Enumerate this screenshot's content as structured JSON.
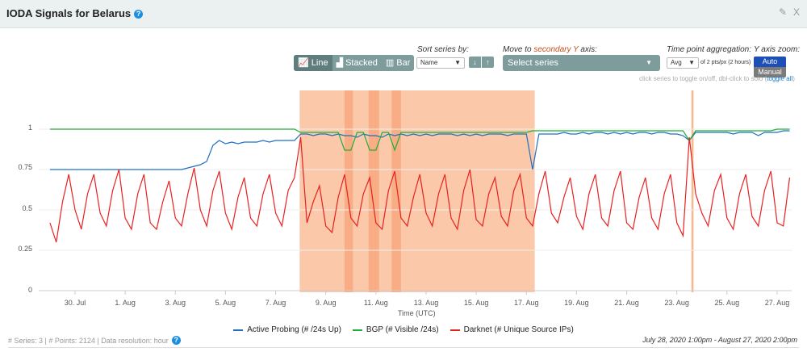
{
  "header": {
    "title": "IODA Signals for Belarus",
    "help_icon": "question-circle-icon",
    "edit_icon": "edit-icon",
    "close_label": "X"
  },
  "controls": {
    "chart_types": [
      {
        "label": "Line",
        "icon": "line-chart-icon",
        "active": true
      },
      {
        "label": "Stacked",
        "icon": "area-chart-icon",
        "active": false
      },
      {
        "label": "Bar",
        "icon": "bar-chart-icon",
        "active": false
      }
    ],
    "sort_label": "Sort series by:",
    "sort_value": "Name",
    "sort_down": "↓",
    "sort_up": "↑",
    "secondary_label_pre": "Move to ",
    "secondary_label_accent": "secondary Y",
    "secondary_label_post": " axis:",
    "secondary_placeholder": "Select series",
    "accent_color": "#c0501a",
    "agg_label": "Time point aggregation:",
    "agg_value": "Avg",
    "agg_note": "of 2 pts/px (2 hours)",
    "yzoom_label": "Y axis zoom:",
    "yzoom_auto": "Auto",
    "yzoom_manual": "Manual",
    "hint": "click series to toggle on/off, dbl-click to solo (",
    "hint_link": "toggle all",
    "hint_end": ")"
  },
  "footer": {
    "left": "# Series: 3 | # Points: 2124 | Data resolution: hour",
    "right": "July 28, 2020 1:00pm - August 27, 2020 2:00pm"
  },
  "chart_data": {
    "type": "line",
    "xlabel": "Time (UTC)",
    "x_ticks": [
      "30. Jul",
      "1. Aug",
      "3. Aug",
      "5. Aug",
      "7. Aug",
      "9. Aug",
      "11. Aug",
      "13. Aug",
      "15. Aug",
      "17. Aug",
      "19. Aug",
      "21. Aug",
      "23. Aug",
      "25. Aug",
      "27. Aug"
    ],
    "y_ticks": [
      "0",
      "0.25",
      "0.5",
      "0.75",
      "1"
    ],
    "ylim": [
      0,
      1.25
    ],
    "xlim": [
      "2020-07-28T13:00",
      "2020-08-27T14:00"
    ],
    "grid": "horizontal",
    "legend": "bottom",
    "highlight_regions": [
      {
        "from": "2020-08-07T23:00",
        "to": "2020-08-17T08:00",
        "color": "#fbc9a9"
      },
      {
        "from": "2020-08-09T18:00",
        "to": "2020-08-10T02:00",
        "color": "#f8ad85"
      },
      {
        "from": "2020-08-10T17:00",
        "to": "2020-08-11T03:00",
        "color": "#f8ad85"
      },
      {
        "from": "2020-08-11T15:00",
        "to": "2020-08-12T00:00",
        "color": "#f8ad85"
      },
      {
        "from": "2020-08-23T14:00",
        "to": "2020-08-23T16:00",
        "color": "#f8b88f"
      }
    ],
    "x": [
      "2020-07-29T00:00",
      "2020-07-29T06:00",
      "2020-07-29T12:00",
      "2020-07-29T18:00",
      "2020-07-30T00:00",
      "2020-07-30T06:00",
      "2020-07-30T12:00",
      "2020-07-30T18:00",
      "2020-07-31T00:00",
      "2020-07-31T06:00",
      "2020-07-31T12:00",
      "2020-07-31T18:00",
      "2020-08-01T00:00",
      "2020-08-01T06:00",
      "2020-08-01T12:00",
      "2020-08-01T18:00",
      "2020-08-02T00:00",
      "2020-08-02T06:00",
      "2020-08-02T12:00",
      "2020-08-02T18:00",
      "2020-08-03T00:00",
      "2020-08-03T06:00",
      "2020-08-03T12:00",
      "2020-08-03T18:00",
      "2020-08-04T00:00",
      "2020-08-04T06:00",
      "2020-08-04T12:00",
      "2020-08-04T18:00",
      "2020-08-05T00:00",
      "2020-08-05T06:00",
      "2020-08-05T12:00",
      "2020-08-05T18:00",
      "2020-08-06T00:00",
      "2020-08-06T06:00",
      "2020-08-06T12:00",
      "2020-08-06T18:00",
      "2020-08-07T00:00",
      "2020-08-07T06:00",
      "2020-08-07T12:00",
      "2020-08-07T18:00",
      "2020-08-08T00:00",
      "2020-08-08T06:00",
      "2020-08-08T12:00",
      "2020-08-08T18:00",
      "2020-08-09T00:00",
      "2020-08-09T06:00",
      "2020-08-09T12:00",
      "2020-08-09T18:00",
      "2020-08-10T00:00",
      "2020-08-10T06:00",
      "2020-08-10T12:00",
      "2020-08-10T18:00",
      "2020-08-11T00:00",
      "2020-08-11T06:00",
      "2020-08-11T12:00",
      "2020-08-11T18:00",
      "2020-08-12T00:00",
      "2020-08-12T06:00",
      "2020-08-12T12:00",
      "2020-08-12T18:00",
      "2020-08-13T00:00",
      "2020-08-13T06:00",
      "2020-08-13T12:00",
      "2020-08-13T18:00",
      "2020-08-14T00:00",
      "2020-08-14T06:00",
      "2020-08-14T12:00",
      "2020-08-14T18:00",
      "2020-08-15T00:00",
      "2020-08-15T06:00",
      "2020-08-15T12:00",
      "2020-08-15T18:00",
      "2020-08-16T00:00",
      "2020-08-16T06:00",
      "2020-08-16T12:00",
      "2020-08-16T18:00",
      "2020-08-17T00:00",
      "2020-08-17T06:00",
      "2020-08-17T12:00",
      "2020-08-17T18:00",
      "2020-08-18T00:00",
      "2020-08-18T06:00",
      "2020-08-18T12:00",
      "2020-08-18T18:00",
      "2020-08-19T00:00",
      "2020-08-19T06:00",
      "2020-08-19T12:00",
      "2020-08-19T18:00",
      "2020-08-20T00:00",
      "2020-08-20T06:00",
      "2020-08-20T12:00",
      "2020-08-20T18:00",
      "2020-08-21T00:00",
      "2020-08-21T06:00",
      "2020-08-21T12:00",
      "2020-08-21T18:00",
      "2020-08-22T00:00",
      "2020-08-22T06:00",
      "2020-08-22T12:00",
      "2020-08-22T18:00",
      "2020-08-23T00:00",
      "2020-08-23T06:00",
      "2020-08-23T12:00",
      "2020-08-23T18:00",
      "2020-08-24T00:00",
      "2020-08-24T06:00",
      "2020-08-24T12:00",
      "2020-08-24T18:00",
      "2020-08-25T00:00",
      "2020-08-25T06:00",
      "2020-08-25T12:00",
      "2020-08-25T18:00",
      "2020-08-26T00:00",
      "2020-08-26T06:00",
      "2020-08-26T12:00",
      "2020-08-26T18:00",
      "2020-08-27T00:00",
      "2020-08-27T06:00",
      "2020-08-27T12:00"
    ],
    "series": [
      {
        "name": "Active Probing (# /24s Up)",
        "color": "#1f6fc4",
        "values": [
          0.75,
          0.75,
          0.75,
          0.75,
          0.75,
          0.75,
          0.75,
          0.75,
          0.75,
          0.75,
          0.75,
          0.75,
          0.75,
          0.75,
          0.75,
          0.75,
          0.75,
          0.75,
          0.75,
          0.75,
          0.75,
          0.75,
          0.76,
          0.77,
          0.78,
          0.8,
          0.9,
          0.93,
          0.91,
          0.92,
          0.91,
          0.92,
          0.92,
          0.92,
          0.93,
          0.92,
          0.93,
          0.93,
          0.93,
          0.93,
          0.97,
          0.97,
          0.96,
          0.97,
          0.97,
          0.96,
          0.97,
          0.96,
          0.96,
          0.95,
          0.97,
          0.96,
          0.96,
          0.95,
          0.97,
          0.96,
          0.97,
          0.96,
          0.97,
          0.96,
          0.97,
          0.96,
          0.97,
          0.97,
          0.97,
          0.96,
          0.97,
          0.96,
          0.97,
          0.96,
          0.97,
          0.97,
          0.97,
          0.96,
          0.97,
          0.97,
          0.97,
          0.75,
          0.97,
          0.97,
          0.97,
          0.97,
          0.98,
          0.97,
          0.97,
          0.98,
          0.97,
          0.98,
          0.98,
          0.97,
          0.98,
          0.97,
          0.98,
          0.97,
          0.98,
          0.98,
          0.97,
          0.98,
          0.98,
          0.97,
          0.97,
          0.96,
          0.93,
          0.98,
          0.98,
          0.98,
          0.98,
          0.98,
          0.98,
          0.97,
          0.98,
          0.98,
          0.98,
          0.96,
          0.98,
          0.98,
          0.98,
          0.99,
          0.99
        ]
      },
      {
        "name": "BGP (# Visible /24s)",
        "color": "#1fae3a",
        "values": [
          1,
          1,
          1,
          1,
          1,
          1,
          1,
          1,
          1,
          1,
          1,
          1,
          1,
          1,
          1,
          1,
          1,
          1,
          1,
          1,
          1,
          1,
          1,
          1,
          1,
          1,
          1,
          1,
          1,
          1,
          1,
          1,
          1,
          1,
          1,
          1,
          1,
          1,
          1,
          1,
          0.98,
          0.98,
          0.98,
          0.98,
          0.98,
          0.98,
          0.98,
          0.87,
          0.87,
          0.98,
          0.98,
          0.87,
          0.87,
          0.98,
          0.98,
          0.87,
          0.98,
          0.98,
          0.98,
          0.98,
          0.98,
          0.98,
          0.98,
          0.98,
          0.98,
          0.98,
          0.98,
          0.98,
          0.98,
          0.98,
          0.98,
          0.98,
          0.98,
          0.98,
          0.98,
          0.98,
          0.98,
          0.99,
          0.99,
          0.99,
          0.99,
          0.99,
          0.99,
          0.99,
          0.99,
          0.99,
          0.99,
          0.99,
          0.99,
          0.99,
          0.99,
          0.99,
          0.99,
          0.99,
          0.99,
          0.99,
          0.99,
          0.99,
          0.99,
          0.99,
          0.99,
          0.99,
          0.93,
          0.99,
          0.99,
          0.99,
          0.99,
          0.99,
          0.99,
          0.99,
          0.99,
          0.99,
          0.99,
          0.99,
          0.99,
          0.99,
          1,
          1,
          1
        ]
      },
      {
        "name": "Darknet (# Unique Source IPs)",
        "color": "#e8201e",
        "values": [
          0.42,
          0.3,
          0.55,
          0.72,
          0.5,
          0.38,
          0.6,
          0.72,
          0.48,
          0.4,
          0.62,
          0.75,
          0.45,
          0.38,
          0.6,
          0.72,
          0.42,
          0.38,
          0.55,
          0.68,
          0.45,
          0.4,
          0.6,
          0.76,
          0.5,
          0.4,
          0.62,
          0.74,
          0.48,
          0.38,
          0.58,
          0.7,
          0.45,
          0.4,
          0.6,
          0.72,
          0.48,
          0.4,
          0.62,
          0.7,
          0.95,
          0.42,
          0.55,
          0.65,
          0.4,
          0.36,
          0.58,
          0.72,
          0.45,
          0.4,
          0.6,
          0.7,
          0.42,
          0.38,
          0.62,
          0.74,
          0.45,
          0.4,
          0.58,
          0.72,
          0.48,
          0.4,
          0.6,
          0.72,
          0.45,
          0.38,
          0.62,
          0.75,
          0.44,
          0.4,
          0.6,
          0.7,
          0.46,
          0.4,
          0.62,
          0.72,
          0.45,
          0.4,
          0.6,
          0.74,
          0.48,
          0.42,
          0.58,
          0.7,
          0.46,
          0.38,
          0.6,
          0.72,
          0.45,
          0.4,
          0.62,
          0.74,
          0.42,
          0.38,
          0.58,
          0.7,
          0.45,
          0.38,
          0.6,
          0.72,
          0.42,
          0.34,
          0.95,
          0.6,
          0.48,
          0.4,
          0.62,
          0.72,
          0.45,
          0.38,
          0.6,
          0.72,
          0.46,
          0.4,
          0.62,
          0.74,
          0.42,
          0.4,
          0.7
        ]
      }
    ]
  }
}
